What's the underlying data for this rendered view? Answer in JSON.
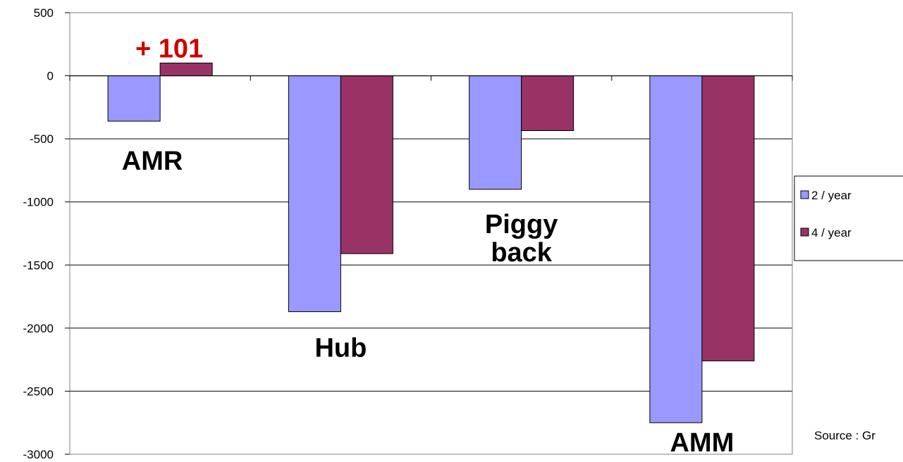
{
  "chart_data": {
    "type": "bar",
    "categories": [
      "AMR",
      "Hub",
      "Piggy back",
      "AMM"
    ],
    "category_label_lines": [
      [
        "AMR"
      ],
      [
        "Hub"
      ],
      [
        "Piggy",
        "back"
      ],
      [
        "AMM"
      ]
    ],
    "series": [
      {
        "name": "2 / year",
        "values": [
          -360,
          -1870,
          -900,
          -2750
        ],
        "color": "#9999ff"
      },
      {
        "name": "4 / year",
        "values": [
          101,
          -1410,
          -435,
          -2260
        ],
        "color": "#993366"
      }
    ],
    "ylim": [
      -3000,
      500
    ],
    "yticks": [
      "500",
      "0",
      "-500",
      "-1000",
      "-1500",
      "-2000",
      "-2500",
      "-3000"
    ],
    "ytick_values": [
      500,
      0,
      -500,
      -1000,
      -1500,
      -2000,
      -2500,
      -3000
    ],
    "grid": true,
    "legend_position": "right",
    "annotations": [
      {
        "text": "+ 101",
        "category": "AMR",
        "series": "4 / year",
        "color": "#cc0000"
      }
    ],
    "source": "Source : Gr",
    "xlabel": "",
    "ylabel": "",
    "title": ""
  }
}
